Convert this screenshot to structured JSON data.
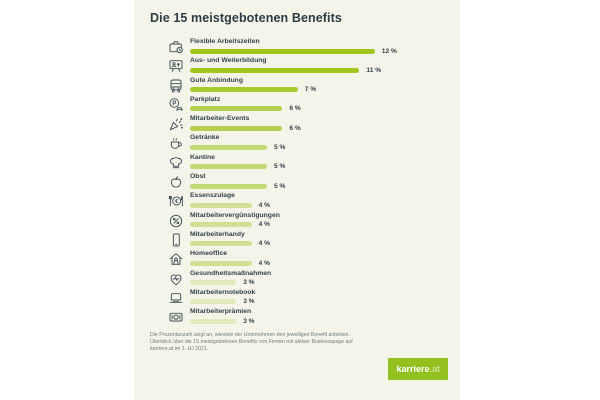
{
  "title": "Die 15 meistgebotenen Benefits",
  "chart_data": {
    "type": "bar",
    "orientation": "horizontal",
    "title": "Die 15 meistgebotenen Benefits",
    "categories": [
      "Flexible Arbeitszeiten",
      "Aus- und Weiterbildung",
      "Gute Anbindung",
      "Parkplatz",
      "Mitarbeiter-Events",
      "Getränke",
      "Kantine",
      "Obst",
      "Essenszulage",
      "Mitarbeitervergünstigungen",
      "Mitarbeiterhandy",
      "Homeoffice",
      "Gesundheitsmaßnahmen",
      "Mitarbeiternotebook",
      "Mitarbeiterprämien"
    ],
    "values": [
      12,
      11,
      7,
      6,
      6,
      5,
      5,
      5,
      4,
      4,
      4,
      4,
      3,
      3,
      3
    ],
    "value_labels": [
      "12 %",
      "11 %",
      "7 %",
      "6 %",
      "6 %",
      "5 %",
      "5 %",
      "5 %",
      "4 %",
      "4 %",
      "4 %",
      "4 %",
      "3 %",
      "3 %",
      "3 %"
    ],
    "unit": "percent of companies",
    "xlim": [
      0,
      12
    ],
    "grid": false,
    "legend": false,
    "bar_color_note": "bars fade from saturated yellow-green at high values to pale green at low values"
  },
  "items": [
    {
      "label": "Flexible Arbeitszeiten",
      "value": 12,
      "value_label": "12 %",
      "icon": "briefcase-clock-icon",
      "bar_color": "#a2c51c"
    },
    {
      "label": "Aus- und Weiterbildung",
      "value": 11,
      "value_label": "11 %",
      "icon": "training-icon",
      "bar_color": "#a2c51c"
    },
    {
      "label": "Gute Anbindung",
      "value": 7,
      "value_label": "7 %",
      "icon": "bus-icon",
      "bar_color": "#a8c930"
    },
    {
      "label": "Parkplatz",
      "value": 6,
      "value_label": "6 %",
      "icon": "parking-icon",
      "bar_color": "#b4cf4d"
    },
    {
      "label": "Mitarbeiter-Events",
      "value": 6,
      "value_label": "6 %",
      "icon": "party-icon",
      "bar_color": "#b4cf4d"
    },
    {
      "label": "Getränke",
      "value": 5,
      "value_label": "5 %",
      "icon": "drinks-icon",
      "bar_color": "#c2d873"
    },
    {
      "label": "Kantine",
      "value": 5,
      "value_label": "5 %",
      "icon": "chef-hat-icon",
      "bar_color": "#c2d873"
    },
    {
      "label": "Obst",
      "value": 5,
      "value_label": "5 %",
      "icon": "apple-icon",
      "bar_color": "#c2d873"
    },
    {
      "label": "Essenszulage",
      "value": 4,
      "value_label": "4 %",
      "icon": "meal-allowance-icon",
      "bar_color": "#cfe094"
    },
    {
      "label": "Mitarbeitervergünstigungen",
      "value": 4,
      "value_label": "4 %",
      "icon": "percent-icon",
      "bar_color": "#cfe094"
    },
    {
      "label": "Mitarbeiterhandy",
      "value": 4,
      "value_label": "4 %",
      "icon": "phone-icon",
      "bar_color": "#cfe094"
    },
    {
      "label": "Homeoffice",
      "value": 4,
      "value_label": "4 %",
      "icon": "homeoffice-icon",
      "bar_color": "#cfe094"
    },
    {
      "label": "Gesundheitsmaßnahmen",
      "value": 3,
      "value_label": "3 %",
      "icon": "health-heart-icon",
      "bar_color": "#e0eaba"
    },
    {
      "label": "Mitarbeiternotebook",
      "value": 3,
      "value_label": "3 %",
      "icon": "laptop-icon",
      "bar_color": "#e0eaba"
    },
    {
      "label": "Mitarbeiterprämien",
      "value": 3,
      "value_label": "3 %",
      "icon": "money-icon",
      "bar_color": "#e0eaba"
    }
  ],
  "footer": {
    "note_lines": [
      "Die Prozentanzahl zeigt an, wieviele der Unternehmen den jeweiligen Benefit anbieten.",
      "Überblick über die 15 meistgebotenen Benefits von Firmen mit aktiver Businesspage auf",
      "karriere.at im 1. HJ 2021."
    ],
    "logo": {
      "text": "karriere",
      "suffix": ".at",
      "background": "#93bf1f"
    }
  },
  "colors": {
    "page_background": "#ffffff",
    "card_background": "#f4f4e9",
    "title_text": "#2c3c45",
    "label_text": "#32424b",
    "icon_stroke": "#3d4d55",
    "footer_text": "#6e7e7d",
    "logo_green": "#93bf1f"
  }
}
